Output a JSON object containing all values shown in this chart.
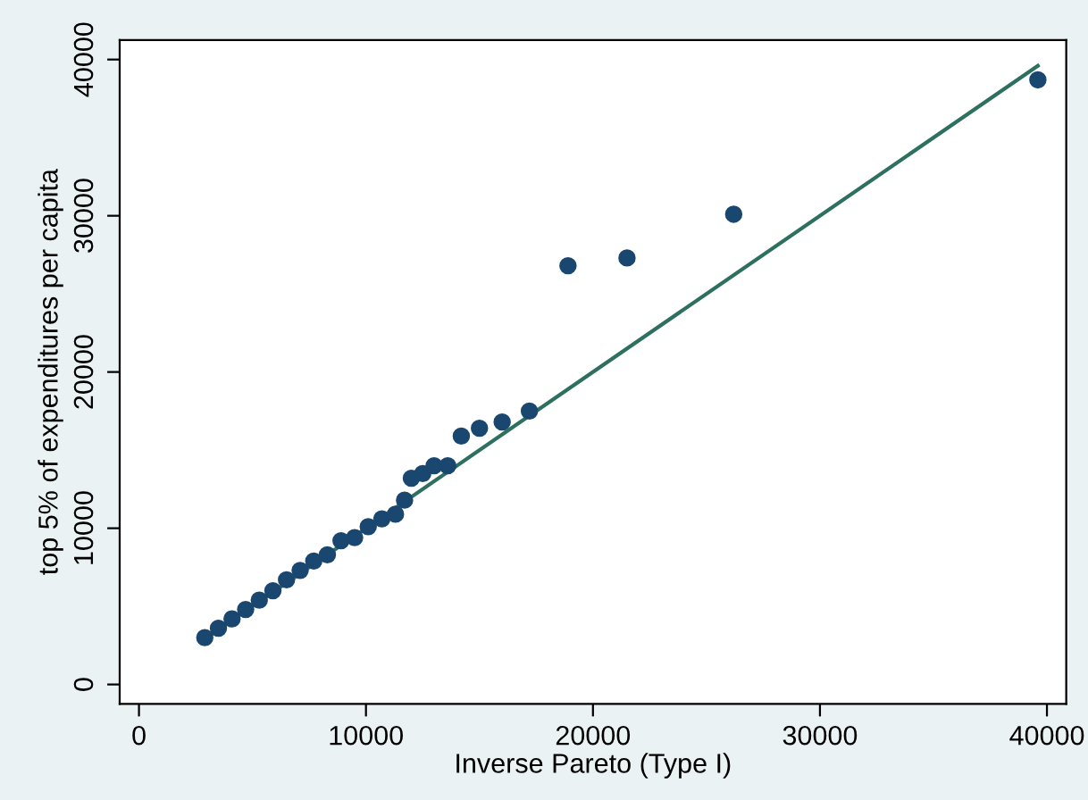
{
  "chart_data": {
    "type": "scatter",
    "xlabel": "Inverse Pareto (Type I)",
    "ylabel": "top 5% of expenditures per capita",
    "xlim": [
      -850,
      40850
    ],
    "ylim": [
      -1250,
      41250
    ],
    "xticks": [
      0,
      10000,
      20000,
      30000,
      40000
    ],
    "yticks": [
      0,
      10000,
      20000,
      30000,
      40000
    ],
    "grid": false,
    "series": [
      {
        "color": "#1a476f",
        "marker": "circle",
        "x": [
          2900,
          3500,
          4100,
          4700,
          5300,
          5900,
          6500,
          7100,
          7700,
          8300,
          8900,
          9500,
          10100,
          10700,
          11300,
          11700,
          12000,
          12500,
          13000,
          13600,
          14200,
          15000,
          16000,
          17200,
          18900,
          21500,
          26200,
          39600
        ],
        "values": [
          3000,
          3600,
          4200,
          4800,
          5400,
          6000,
          6700,
          7300,
          7900,
          8300,
          9200,
          9400,
          10100,
          10600,
          10900,
          11800,
          13200,
          13500,
          14000,
          14000,
          15900,
          16400,
          16800,
          17500,
          26800,
          27300,
          30100,
          38700
        ]
      },
      {
        "type": "line",
        "color": "#2e7060",
        "x": [
          2900,
          39600
        ],
        "values": [
          2900,
          39600
        ]
      }
    ]
  }
}
